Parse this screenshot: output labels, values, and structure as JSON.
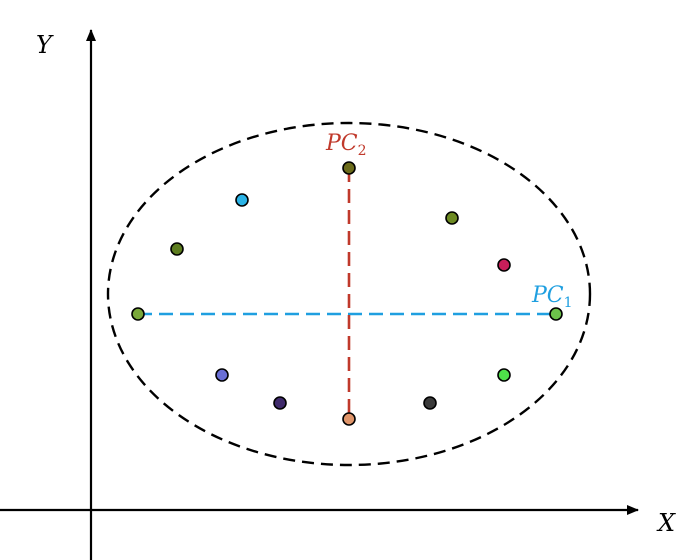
{
  "axes": {
    "x_label": "X",
    "y_label": "Y"
  },
  "components": {
    "pc1": {
      "base": "PC",
      "sub": "1",
      "color": "#1f9fe0"
    },
    "pc2": {
      "base": "PC",
      "sub": "2",
      "color": "#c0392b"
    }
  },
  "colors": {
    "axis": "#000000",
    "ellipse": "#000000"
  },
  "points": [
    {
      "color": "#2bb3e6"
    },
    {
      "color": "#5d7d1f"
    },
    {
      "color": "#6b6b1a"
    },
    {
      "color": "#6d8a22"
    },
    {
      "color": "#c81e5a"
    },
    {
      "color": "#6cc24a"
    },
    {
      "color": "#7aa83a"
    },
    {
      "color": "#6a6fd6"
    },
    {
      "color": "#3f2a6b"
    },
    {
      "color": "#e0956a"
    },
    {
      "color": "#3a3a3a"
    },
    {
      "color": "#4ee04a"
    }
  ]
}
